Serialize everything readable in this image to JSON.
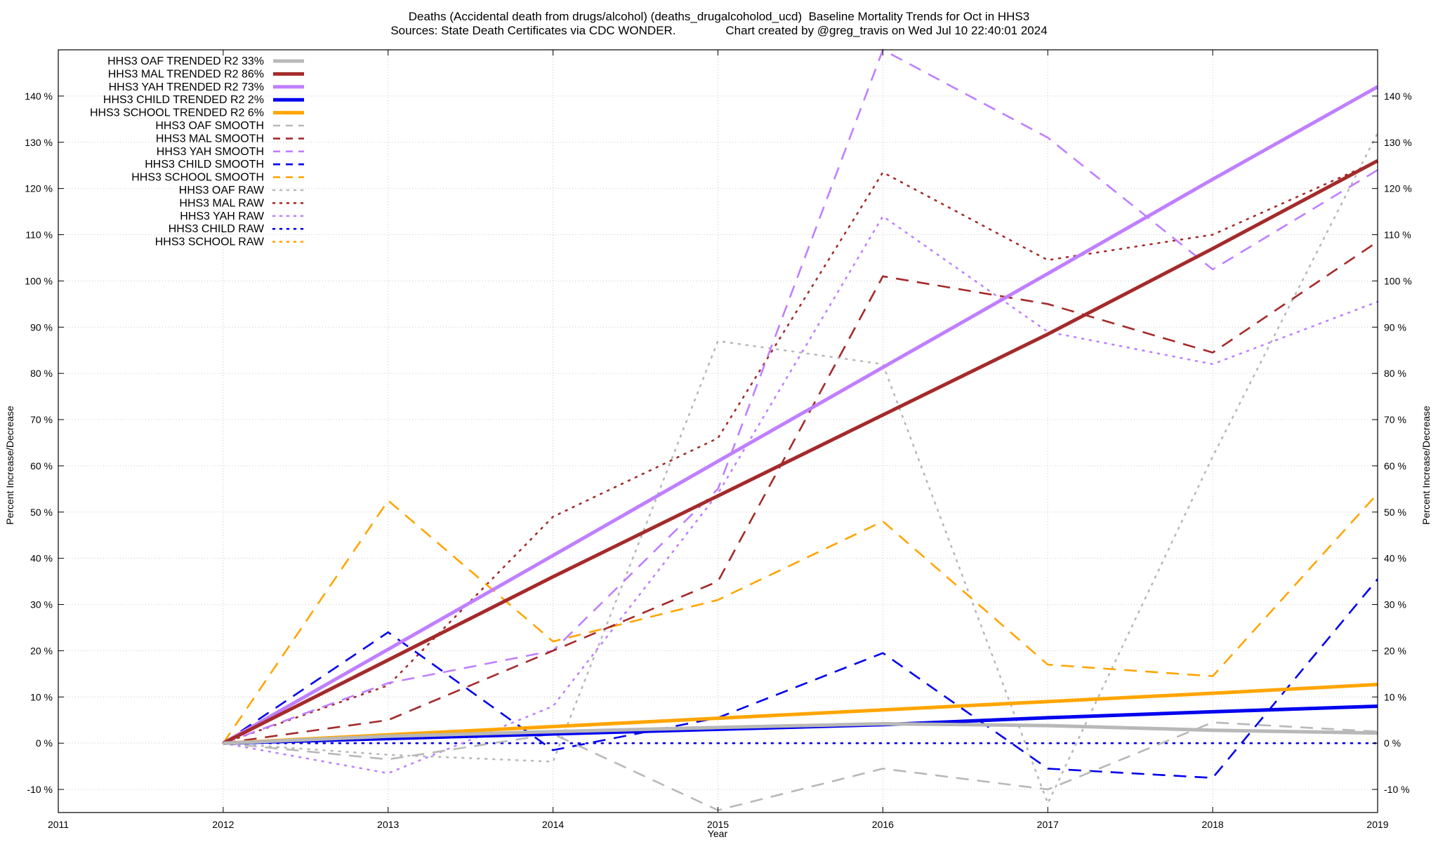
{
  "chart_data": {
    "type": "line",
    "title": "Deaths (Accidental death from drugs/alcohol) (deaths_drugalcoholod_ucd)  Baseline Mortality Trends for Oct in HHS3",
    "subtitle": "Sources: State Death Certificates via CDC WONDER.               Chart created by @greg_travis on Wed Jul 10 22:40:01 2024",
    "xlabel": "Year",
    "ylabel": "Percent Increase/Decrease",
    "y2label": "Percent Increase/Decrease",
    "xlim": [
      2011,
      2019
    ],
    "ylim": [
      -15,
      150
    ],
    "x_ticks": [
      2011,
      2012,
      2013,
      2014,
      2015,
      2016,
      2017,
      2018,
      2019
    ],
    "y_ticks": [
      -10,
      0,
      10,
      20,
      30,
      40,
      50,
      60,
      70,
      80,
      90,
      100,
      110,
      120,
      130,
      140
    ],
    "y_tick_labels": [
      "-10 %",
      "0 %",
      "10 %",
      "20 %",
      "30 %",
      "40 %",
      "50 %",
      "60 %",
      "70 %",
      "80 %",
      "90 %",
      "100 %",
      "110 %",
      "120 %",
      "130 %",
      "140 %"
    ],
    "grid": true,
    "legend_position": "top-left",
    "x": [
      2012,
      2013,
      2014,
      2015,
      2016,
      2017,
      2018,
      2019
    ],
    "series": [
      {
        "name": "HHS3 OAF TRENDED R2  33%",
        "color": "#b8b8b8",
        "style": "solid",
        "width": 5,
        "values": [
          0,
          1.5,
          2.5,
          3.4,
          4.2,
          3.8,
          2.8,
          2.2
        ]
      },
      {
        "name": "HHS3 MAL TRENDED R2  86%",
        "color": "#a52a2a",
        "style": "solid",
        "width": 5,
        "values": [
          0,
          18,
          36,
          53.5,
          71,
          88.5,
          107,
          126
        ]
      },
      {
        "name": "HHS3 YAH TRENDED R2  73%",
        "color": "#bf7fff",
        "style": "solid",
        "width": 5,
        "values": [
          0,
          20.3,
          40.6,
          61,
          81.3,
          101.6,
          122,
          142
        ]
      },
      {
        "name": "HHS3 CHILD TRENDED R2  2%",
        "color": "#0000ee",
        "style": "solid",
        "width": 5,
        "values": [
          0,
          1,
          2,
          3,
          4,
          5.5,
          6.8,
          8
        ]
      },
      {
        "name": "HHS3 SCHOOL TRENDED R2  6%",
        "color": "#ffa500",
        "style": "solid",
        "width": 5,
        "values": [
          0,
          1.8,
          3.6,
          5.4,
          7.2,
          9,
          10.8,
          12.7
        ]
      },
      {
        "name": "HHS3 OAF SMOOTH",
        "color": "#b8b8b8",
        "style": "dashed",
        "width": 2.6,
        "values": [
          0,
          -3.5,
          2,
          -14.5,
          -5.5,
          -10,
          4.5,
          2.5
        ]
      },
      {
        "name": "HHS3 MAL SMOOTH",
        "color": "#a52a2a",
        "style": "dashed",
        "width": 2.6,
        "values": [
          0,
          5,
          20,
          35,
          101,
          95,
          84.5,
          108.5
        ]
      },
      {
        "name": "HHS3 YAH SMOOTH",
        "color": "#bf7fff",
        "style": "dashed",
        "width": 2.6,
        "values": [
          0,
          13,
          20,
          55,
          150,
          131,
          102.5,
          124
        ]
      },
      {
        "name": "HHS3 CHILD SMOOTH",
        "color": "#0000ee",
        "style": "dashed",
        "width": 2.6,
        "values": [
          0,
          24,
          -1.5,
          5.5,
          19.5,
          -5.5,
          -7.5,
          35.5
        ]
      },
      {
        "name": "HHS3 SCHOOL SMOOTH",
        "color": "#ffa500",
        "style": "dashed",
        "width": 2.6,
        "values": [
          0,
          52.5,
          22,
          31,
          48,
          17,
          14.5,
          54
        ]
      },
      {
        "name": "HHS3 OAF RAW",
        "color": "#b8b8b8",
        "style": "dotted",
        "width": 2.6,
        "values": [
          0,
          -2.5,
          -4,
          87,
          82,
          -13,
          62,
          132
        ]
      },
      {
        "name": "HHS3 MAL RAW",
        "color": "#a52a2a",
        "style": "dotted",
        "width": 2.6,
        "values": [
          0,
          12.5,
          49,
          66,
          123.5,
          104.5,
          110,
          126
        ]
      },
      {
        "name": "HHS3 YAH RAW",
        "color": "#bf7fff",
        "style": "dotted",
        "width": 2.6,
        "values": [
          0,
          -6.5,
          8,
          54,
          114,
          89,
          82,
          95.5
        ]
      },
      {
        "name": "HHS3 CHILD RAW",
        "color": "#0000ee",
        "style": "dotted",
        "width": 2.6,
        "values": [
          0,
          0,
          0,
          0,
          0,
          0,
          0,
          0
        ]
      },
      {
        "name": "HHS3 SCHOOL RAW",
        "color": "#ffa500",
        "style": "dotted",
        "width": 2.6,
        "values": [
          0,
          0,
          0,
          0,
          0,
          0,
          0,
          0
        ]
      }
    ]
  }
}
